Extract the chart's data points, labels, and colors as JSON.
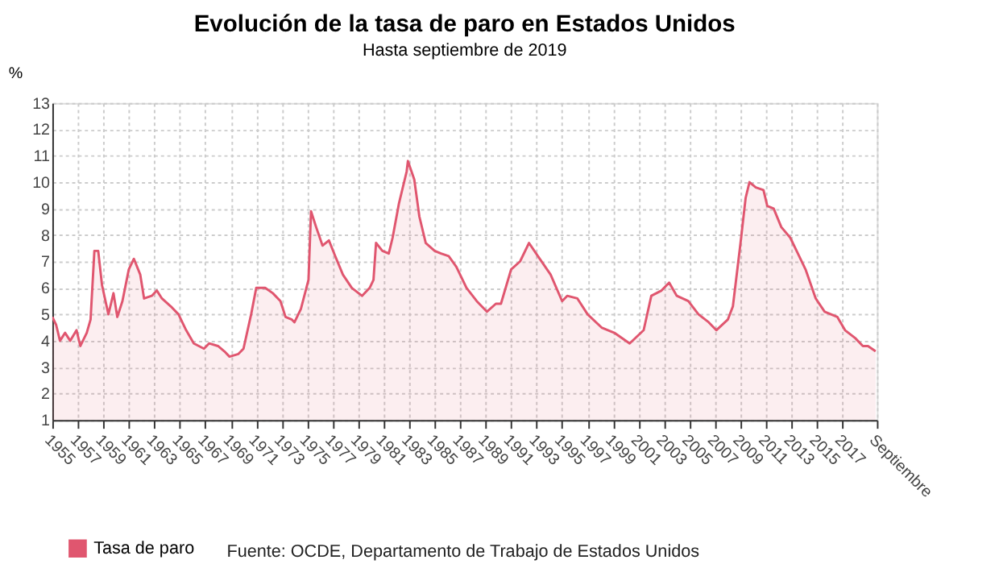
{
  "chart_data": {
    "type": "area",
    "title": "Evolución de la tasa de paro en Estados Unidos",
    "subtitle": "Hasta septiembre de 2019",
    "ylabel": "%",
    "x": [
      1955.0,
      1955.3,
      1955.6,
      1956.0,
      1956.4,
      1956.9,
      1957.2,
      1957.7,
      1958.0,
      1958.3,
      1958.6,
      1958.9,
      1959.4,
      1959.8,
      1960.1,
      1960.5,
      1961.0,
      1961.4,
      1961.9,
      1962.2,
      1962.8,
      1963.2,
      1963.6,
      1964.3,
      1964.9,
      1965.5,
      1966.1,
      1966.9,
      1967.3,
      1968.0,
      1968.5,
      1968.9,
      1969.6,
      1970.0,
      1970.6,
      1971.0,
      1971.7,
      1972.3,
      1972.9,
      1973.3,
      1973.8,
      1974.0,
      1974.5,
      1975.1,
      1975.3,
      1975.7,
      1976.2,
      1976.7,
      1977.2,
      1977.8,
      1978.5,
      1979.3,
      1979.9,
      1980.2,
      1980.4,
      1980.9,
      1981.4,
      1981.7,
      1982.2,
      1982.8,
      1982.9,
      1983.4,
      1983.8,
      1984.3,
      1985.0,
      1985.5,
      1986.1,
      1986.7,
      1987.5,
      1988.3,
      1989.1,
      1989.8,
      1990.2,
      1991.0,
      1991.7,
      1992.4,
      1993.1,
      1994.1,
      1995.0,
      1995.4,
      1996.2,
      1997.0,
      1998.1,
      1999.1,
      2000.3,
      2001.4,
      2002.0,
      2002.8,
      2003.4,
      2004.0,
      2004.9,
      2005.7,
      2006.5,
      2007.1,
      2008.0,
      2008.4,
      2009.0,
      2009.4,
      2009.7,
      2010.2,
      2010.8,
      2011.1,
      2011.6,
      2012.2,
      2012.9,
      2013.5,
      2014.1,
      2014.9,
      2015.6,
      2016.6,
      2017.2,
      2018.0,
      2018.6,
      2019.0,
      2019.6
    ],
    "series": [
      {
        "name": "Tasa de paro",
        "color": "#e0566f",
        "values": [
          4.9,
          4.6,
          4.0,
          4.3,
          4.0,
          4.4,
          3.8,
          4.3,
          4.8,
          7.4,
          7.4,
          6.1,
          5.0,
          5.8,
          4.9,
          5.5,
          6.7,
          7.1,
          6.5,
          5.6,
          5.7,
          5.9,
          5.6,
          5.3,
          5.0,
          4.4,
          3.9,
          3.7,
          3.9,
          3.8,
          3.6,
          3.4,
          3.5,
          3.7,
          5.0,
          6.0,
          6.0,
          5.8,
          5.5,
          4.9,
          4.8,
          4.7,
          5.2,
          6.3,
          8.9,
          8.3,
          7.6,
          7.8,
          7.2,
          6.5,
          6.0,
          5.7,
          6.0,
          6.3,
          7.7,
          7.4,
          7.3,
          7.9,
          9.2,
          10.4,
          10.8,
          10.1,
          8.7,
          7.7,
          7.4,
          7.3,
          7.2,
          6.8,
          6.0,
          5.5,
          5.1,
          5.4,
          5.4,
          6.7,
          7.0,
          7.7,
          7.2,
          6.5,
          5.5,
          5.7,
          5.6,
          5.0,
          4.5,
          4.3,
          3.9,
          4.4,
          5.7,
          5.9,
          6.2,
          5.7,
          5.5,
          5.0,
          4.7,
          4.4,
          4.8,
          5.3,
          7.7,
          9.4,
          10.0,
          9.8,
          9.7,
          9.1,
          9.0,
          8.3,
          7.9,
          7.3,
          6.7,
          5.6,
          5.1,
          4.9,
          4.4,
          4.1,
          3.8,
          3.8,
          3.6
        ]
      }
    ],
    "xlim": [
      1955,
      2019.7
    ],
    "xticks": [
      1955,
      1957,
      1959,
      1961,
      1963,
      1965,
      1967,
      1969,
      1971,
      1973,
      1975,
      1977,
      1979,
      1981,
      1983,
      1985,
      1987,
      1989,
      1991,
      1993,
      1995,
      1997,
      1999,
      2001,
      2003,
      2005,
      2007,
      2009,
      2011,
      2013,
      2015,
      2017,
      {
        "value": 2019.7,
        "label": "Septiembre"
      }
    ],
    "ylim": [
      1,
      13
    ],
    "yticks": [
      1,
      2,
      3,
      4,
      5,
      6,
      7,
      8,
      9,
      10,
      11,
      12,
      13
    ],
    "grid": true,
    "legend": "bottom",
    "annotations": [
      "Fuente: OCDE, Departamento de Trabajo de Estados Unidos"
    ]
  }
}
